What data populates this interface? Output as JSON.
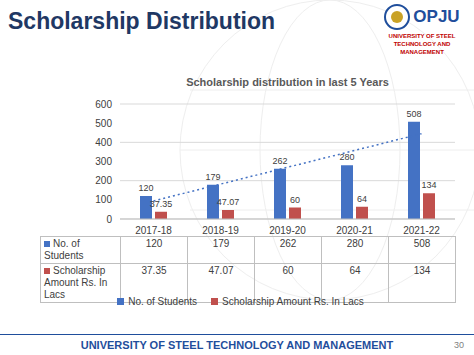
{
  "slide": {
    "title": "Scholarship Distribution",
    "logo_text": "OPJU",
    "logo_subtitle": "UNIVERSITY OF STEEL TECHNOLOGY AND MANAGEMENT",
    "footer": "UNIVERSITY OF STEEL TECHNOLOGY AND MANAGEMENT",
    "page": 30
  },
  "chart_data": {
    "type": "bar",
    "title": "Scholarship distribution in last 5 Years",
    "categories": [
      "2017-18",
      "2018-19",
      "2019-20",
      "2020-21",
      "2021-22"
    ],
    "series": [
      {
        "name": "No. of Students",
        "color": "#4472c4",
        "values": [
          120,
          179,
          262,
          280,
          508
        ]
      },
      {
        "name": "Scholarship Amount Rs. In Lacs",
        "color": "#c0504d",
        "values": [
          37.35,
          47.07,
          60,
          64,
          134
        ]
      }
    ],
    "trendline": {
      "type": "line",
      "color": "#4472c4",
      "line_style": "dotted",
      "values": [
        94.4,
        182.1,
        269.8,
        357.5,
        445.2
      ]
    },
    "ylim": [
      0,
      600
    ],
    "yticks": [
      0,
      100,
      200,
      300,
      400,
      500,
      600
    ],
    "grid": true,
    "data_labels": true,
    "legend": "bottom"
  }
}
